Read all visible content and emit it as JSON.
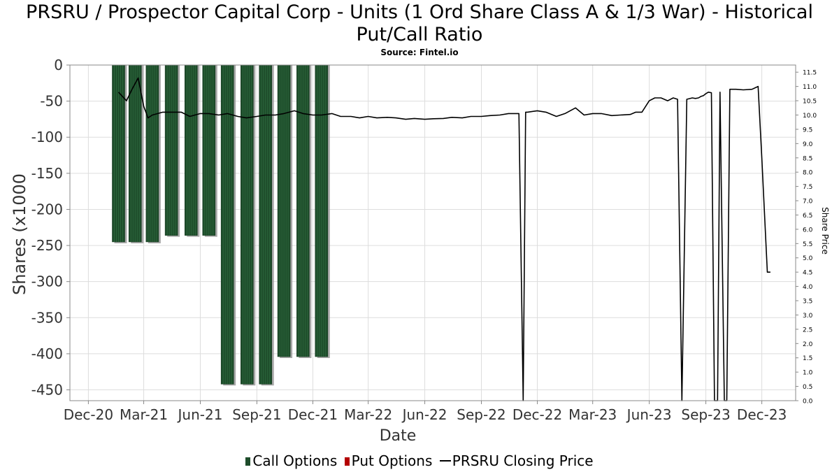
{
  "title_line1": "PRSRU / Prospector Capital Corp - Units (1 Ord Share Class A & 1/3 War) - Historical",
  "title_line2": "Put/Call Ratio",
  "subtitle": "Source: Fintel.io",
  "legend": {
    "call": "Call Options",
    "put": "Put Options",
    "price": "PRSRU Closing Price"
  },
  "colors": {
    "call": "#1e4d2b",
    "put": "#b40000",
    "price": "#000000",
    "grid": "#dddddd",
    "bar_shadow": "#999999"
  },
  "chart_data": {
    "type": "bar",
    "xlabel": "Date",
    "ylabel": "Shares (x1000",
    "y2label": "Share Price",
    "ylim": [
      -465,
      0
    ],
    "y2lim": [
      0,
      11.75
    ],
    "grid": true,
    "legend_position": "bottom",
    "x_range": [
      "2020-11-01",
      "2024-01-25"
    ],
    "x_ticks": [
      {
        "date": "2020-12-01",
        "label": "Dec-20"
      },
      {
        "date": "2021-03-01",
        "label": "Mar-21"
      },
      {
        "date": "2021-06-01",
        "label": "Jun-21"
      },
      {
        "date": "2021-09-01",
        "label": "Sep-21"
      },
      {
        "date": "2021-12-01",
        "label": "Dec-21"
      },
      {
        "date": "2022-03-01",
        "label": "Mar-22"
      },
      {
        "date": "2022-06-01",
        "label": "Jun-22"
      },
      {
        "date": "2022-09-01",
        "label": "Sep-22"
      },
      {
        "date": "2022-12-01",
        "label": "Dec-22"
      },
      {
        "date": "2023-03-01",
        "label": "Mar-23"
      },
      {
        "date": "2023-06-01",
        "label": "Jun-23"
      },
      {
        "date": "2023-09-01",
        "label": "Sep-23"
      },
      {
        "date": "2023-12-01",
        "label": "Dec-23"
      }
    ],
    "y_ticks": [
      0,
      -50,
      -100,
      -150,
      -200,
      -250,
      -300,
      -350,
      -400,
      -450
    ],
    "y2_ticks": [
      "0.0",
      "0.5",
      "1.0",
      "1.5",
      "2.0",
      "2.5",
      "3.0",
      "3.5",
      "4.0",
      "4.5",
      "5.0",
      "5.5",
      "6.0",
      "6.5",
      "7.0",
      "7.5",
      "8.0",
      "8.5",
      "9.0",
      "9.5",
      "10.0",
      "10.5",
      "11.0",
      "11.5"
    ],
    "call_series": {
      "name": "Call Options",
      "dates": [
        "2021-01-19",
        "2021-02-15",
        "2021-03-15",
        "2021-04-15",
        "2021-05-17",
        "2021-06-15",
        "2021-07-15",
        "2021-08-16",
        "2021-09-15",
        "2021-10-15",
        "2021-11-15",
        "2021-12-15"
      ],
      "values": [
        -245,
        -245,
        -245,
        -236,
        -236,
        -236,
        -442,
        -442,
        -442,
        -404,
        -404,
        -404
      ]
    },
    "put_series": {
      "name": "Put Options",
      "dates": [],
      "values": []
    },
    "price_series": {
      "name": "PRSRU Closing Price",
      "dates": [
        "2021-01-19",
        "2021-02-01",
        "2021-02-10",
        "2021-02-20",
        "2021-03-01",
        "2021-03-08",
        "2021-03-15",
        "2021-04-01",
        "2021-04-15",
        "2021-05-01",
        "2021-05-15",
        "2021-06-01",
        "2021-06-15",
        "2021-07-01",
        "2021-07-15",
        "2021-08-01",
        "2021-08-15",
        "2021-09-01",
        "2021-09-15",
        "2021-10-01",
        "2021-10-15",
        "2021-11-01",
        "2021-11-15",
        "2021-12-01",
        "2021-12-15",
        "2022-01-01",
        "2022-01-15",
        "2022-02-01",
        "2022-02-15",
        "2022-03-01",
        "2022-03-15",
        "2022-04-01",
        "2022-04-15",
        "2022-05-01",
        "2022-05-15",
        "2022-06-01",
        "2022-06-15",
        "2022-07-01",
        "2022-07-15",
        "2022-08-01",
        "2022-08-15",
        "2022-09-01",
        "2022-09-15",
        "2022-10-01",
        "2022-10-15",
        "2022-11-01",
        "2022-11-08",
        "2022-11-12",
        "2022-11-15",
        "2022-12-01",
        "2022-12-15",
        "2023-01-01",
        "2023-01-15",
        "2023-02-01",
        "2023-02-15",
        "2023-03-01",
        "2023-03-15",
        "2023-04-01",
        "2023-04-15",
        "2023-05-01",
        "2023-05-10",
        "2023-05-20",
        "2023-06-01",
        "2023-06-10",
        "2023-06-20",
        "2023-07-01",
        "2023-07-10",
        "2023-07-17",
        "2023-07-24",
        "2023-08-01",
        "2023-08-10",
        "2023-08-15",
        "2023-08-20",
        "2023-08-24",
        "2023-08-28",
        "2023-09-01",
        "2023-09-05",
        "2023-09-10",
        "2023-09-15",
        "2023-09-20",
        "2023-09-24",
        "2023-10-01",
        "2023-10-05",
        "2023-10-10",
        "2023-10-20",
        "2023-11-01",
        "2023-11-15",
        "2023-11-25",
        "2023-12-01",
        "2023-12-10",
        "2023-12-15"
      ],
      "values": [
        10.8,
        10.5,
        10.9,
        11.3,
        10.3,
        9.9,
        10.0,
        10.1,
        10.1,
        10.1,
        9.95,
        10.05,
        10.05,
        10.0,
        10.05,
        9.95,
        9.9,
        9.95,
        10.0,
        10.0,
        10.05,
        10.15,
        10.05,
        10.0,
        10.0,
        10.05,
        9.95,
        9.95,
        9.9,
        9.95,
        9.9,
        9.92,
        9.9,
        9.85,
        9.88,
        9.85,
        9.87,
        9.88,
        9.92,
        9.9,
        9.95,
        9.95,
        9.98,
        10.0,
        10.05,
        10.05,
        0.0,
        10.1,
        10.1,
        10.15,
        10.1,
        9.95,
        10.05,
        10.25,
        10.0,
        10.05,
        10.05,
        9.98,
        10.0,
        10.02,
        10.1,
        10.1,
        10.5,
        10.6,
        10.6,
        10.5,
        10.6,
        10.55,
        0.0,
        10.55,
        10.6,
        10.58,
        10.6,
        10.65,
        10.68,
        10.75,
        10.8,
        10.78,
        0.0,
        0.0,
        10.8,
        0.0,
        0.0,
        10.9,
        10.9,
        10.88,
        10.9,
        11.0,
        8.5,
        4.5,
        4.5
      ],
      "note_style": "line"
    }
  }
}
